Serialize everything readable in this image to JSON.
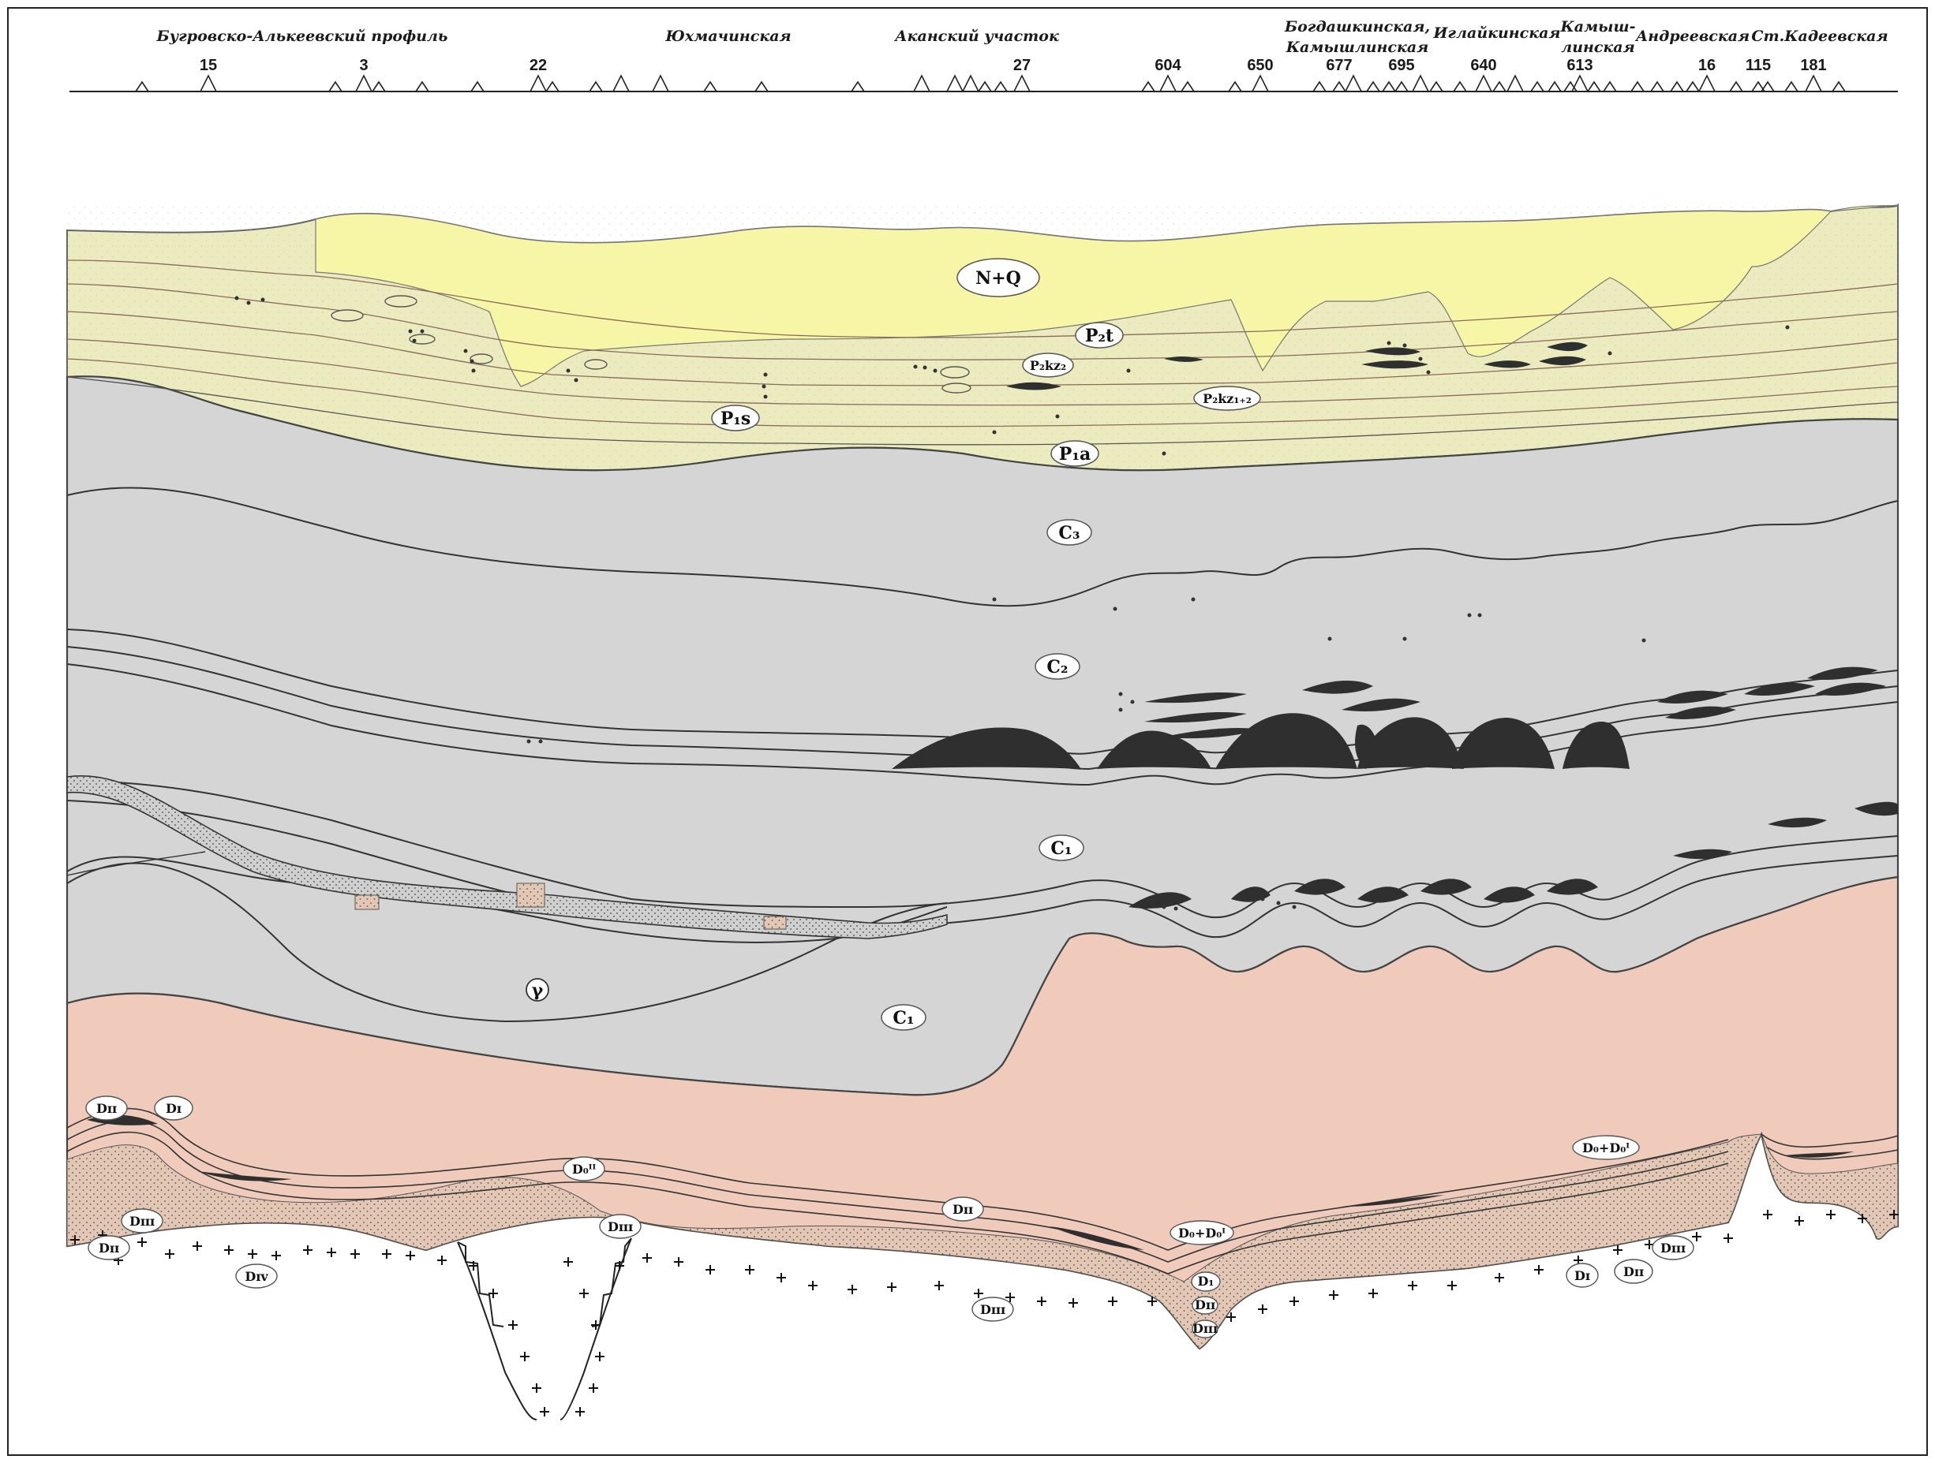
{
  "site_labels": [
    "Бугровско-Алькеевский профиль",
    "Юхмачинская",
    "Аканский участок",
    "Богдашкинская,",
    "Камышлинская",
    "Иглайкинская",
    "Камыш-",
    "линская",
    "Андреевская",
    "Ст.Кадеевская"
  ],
  "well_numbers": [
    "15",
    "3",
    "22",
    "27",
    "604",
    "650",
    "677",
    "695",
    "640",
    "613",
    "16",
    "115",
    "181"
  ],
  "formations": {
    "nq": "N+Q",
    "p2t": "P₂t",
    "p2kz2": "P₂kz₂",
    "p2kz12": "P₂kz₁₊₂",
    "p1s": "P₁s",
    "p1a": "P₁a",
    "c3": "C₃",
    "c2": "C₂",
    "c1_upper": "C₁",
    "c1_lower": "C₁",
    "gamma": "γ"
  },
  "devonian_labels": [
    "Dɪɪ",
    "Dɪ",
    "Dɪɪɪ",
    "Dɪɪ",
    "Dɪᴠ",
    "D₀ᴵᴵ",
    "Dɪɪɪ",
    "Dɪɪ",
    "Dɪɪɪ",
    "D₀+D₀ᴵ",
    "D₁",
    "Dɪɪ",
    "Dɪɪɪ",
    "D₀+D₀ᴵ",
    "Dɪ",
    "Dɪɪ",
    "Dɪɪɪ"
  ],
  "colors": {
    "quaternary": "#f7f6a6",
    "permian": "#ecebc0",
    "carboniferous": "#d5d5d5",
    "devonian": "#f0cbbc",
    "bitumen": "#2f2f2f",
    "line": "#4a4a4a"
  }
}
